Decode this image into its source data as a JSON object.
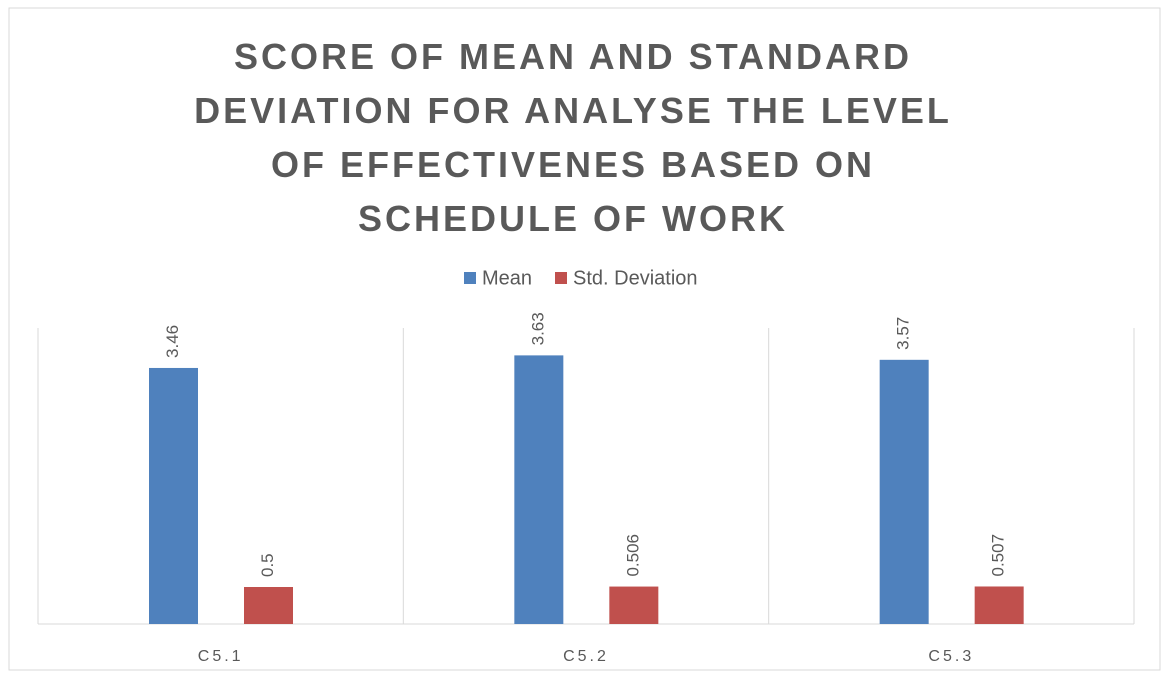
{
  "chart_data": {
    "type": "bar",
    "title": "SCORE OF MEAN AND STANDARD DEVIATION FOR ANALYSE THE LEVEL OF EFFECTIVENES BASED ON SCHEDULE OF WORK",
    "categories": [
      "C5.1",
      "C5.2",
      "C5.3"
    ],
    "series": [
      {
        "name": "Mean",
        "color": "#4f81bd",
        "values": [
          3.46,
          3.63,
          3.57
        ]
      },
      {
        "name": "Std. Deviation",
        "color": "#c0504d",
        "values": [
          0.5,
          0.506,
          0.507
        ]
      }
    ],
    "ylim": [
      0,
      4
    ],
    "legend": "top"
  }
}
